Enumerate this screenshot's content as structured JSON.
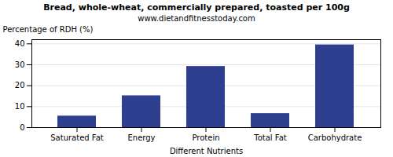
{
  "chart_data": {
    "type": "bar",
    "title": "Bread, whole-wheat, commercially prepared, toasted per 100g",
    "subtitle": "www.dietandfitnesstoday.com",
    "xlabel": "Different Nutrients",
    "ylabel": "Percentage of RDH (%)",
    "categories": [
      "Saturated Fat",
      "Energy",
      "Protein",
      "Total Fat",
      "Carbohydrate"
    ],
    "values": [
      5.5,
      15.2,
      29.2,
      6.7,
      39.5
    ],
    "color": "#2e3f8f",
    "ylim": [
      0,
      42
    ],
    "yticks": [
      0,
      10,
      20,
      30,
      40
    ],
    "grid": true
  }
}
